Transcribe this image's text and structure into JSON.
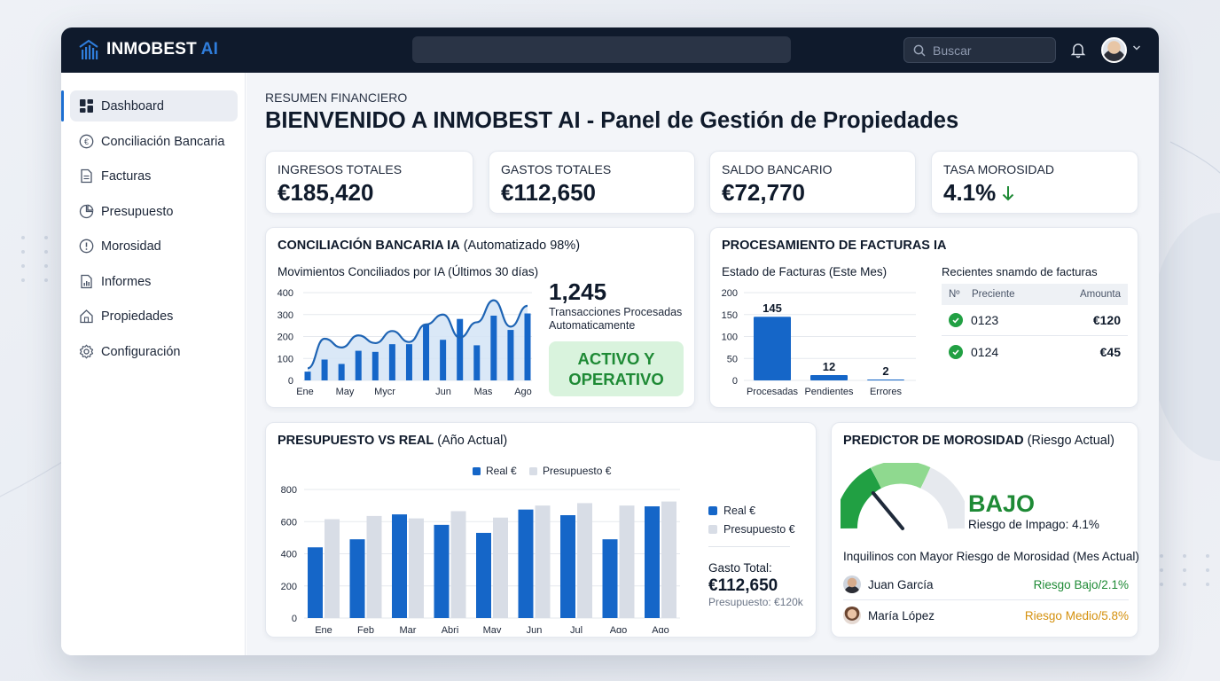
{
  "app": {
    "brand": "INMOBEST",
    "brand_accent": "AI",
    "search_placeholder": "Buscar"
  },
  "sidebar": {
    "items": [
      {
        "label": "Dashboard",
        "icon": "grid-icon",
        "active": true
      },
      {
        "label": "Conciliación Bancaria",
        "icon": "euro-icon"
      },
      {
        "label": "Facturas",
        "icon": "document-icon"
      },
      {
        "label": "Presupuesto",
        "icon": "pie-chart-icon"
      },
      {
        "label": "Morosidad",
        "icon": "alert-circle-icon"
      },
      {
        "label": "Informes",
        "icon": "report-icon"
      },
      {
        "label": "Propiedades",
        "icon": "home-icon"
      },
      {
        "label": "Configuración",
        "icon": "gear-icon"
      }
    ]
  },
  "header": {
    "eyebrow": "RESUMEN FINANCIERO",
    "title": "BIENVENIDO A INMOBEST AI - Panel de Gestión de Propiedades"
  },
  "kpis": [
    {
      "label": "INGRESOS TOTALES",
      "value": "€185,420"
    },
    {
      "label": "GASTOS TOTALES",
      "value": "€112,650"
    },
    {
      "label": "SALDO BANCARIO",
      "value": "€72,770"
    },
    {
      "label": "TASA MOROSIDAD",
      "value": "4.1%",
      "trend": "down"
    }
  ],
  "conciliacion": {
    "title": "CONCILIACIÓN BANCARIA IA",
    "title_suffix": "(Automatizado 98%)",
    "subtitle": "Movimientos Conciliados por IA (Últimos 30 días)",
    "count": "1,245",
    "count_desc": "Transacciones Procesadas Automaticamente",
    "status": "ACTIVO Y OPERATIVO"
  },
  "facturas": {
    "title": "PROCESAMIENTO DE FACTURAS IA",
    "subtitle": "Estado de Facturas (Este Mes)",
    "recent_title": "Recientes snamdo de facturas",
    "recent_headers": [
      "Nº",
      "Preciente",
      "Amounta"
    ],
    "recent_rows": [
      {
        "id": "0123",
        "amount": "€120"
      },
      {
        "id": "0124",
        "amount": "€45"
      }
    ]
  },
  "presupuesto": {
    "title": "PRESUPUESTO VS REAL",
    "title_suffix": "(Año Actual)",
    "legend_real": "Real €",
    "legend_presupuesto": "Presupuesto €",
    "gasto_label": "Gasto Total:",
    "gasto_value": "€112,650",
    "presupuesto_label": "Presupuesto: €120k"
  },
  "morosidad": {
    "title": "PREDICTOR DE MOROSIDAD",
    "title_suffix": "(Riesgo Actual)",
    "level": "BAJO",
    "gauge_fraction": 0.28,
    "risk_text": "Riesgo de Impago: 4.1%",
    "tenants_title": "Inquilinos con Mayor Riesgo de Morosidad (Mes Actual)",
    "tenants": [
      {
        "name": "Juan García",
        "risk": "Riesgo Bajo/2.1%",
        "color": "#1e8a35"
      },
      {
        "name": "María López",
        "risk": "Riesgo Medio/5.8%",
        "color": "#d4900d"
      }
    ]
  },
  "colors": {
    "accent": "#1d6fd1",
    "topbar": "#0f1a2c",
    "success": "#1e8a35",
    "warning": "#d4900d"
  },
  "chart_data": [
    {
      "type": "area",
      "title": "Movimientos Conciliados por IA (Últimos 30 días)",
      "x_ticks": [
        "Ene",
        "May",
        "Mycr",
        "Jun",
        "Mas",
        "Ago"
      ],
      "yticks": [
        0,
        100,
        200,
        300,
        400
      ],
      "ylim": [
        0,
        400
      ],
      "series": [
        {
          "kind": "line",
          "values": [
            55,
            190,
            150,
            205,
            170,
            225,
            175,
            255,
            300,
            195,
            265,
            365,
            245,
            340
          ]
        },
        {
          "kind": "bar",
          "values": [
            40,
            95,
            75,
            135,
            130,
            165,
            165,
            255,
            185,
            280,
            160,
            295,
            230,
            305
          ]
        }
      ]
    },
    {
      "type": "bar",
      "title": "Estado de Facturas (Este Mes)",
      "categories": [
        "Procesadas",
        "Pendientes",
        "Errores"
      ],
      "values": [
        145,
        12,
        2
      ],
      "yticks": [
        0,
        50,
        100,
        150,
        200
      ],
      "ylim": [
        0,
        200
      ]
    },
    {
      "type": "bar",
      "title": "PRESUPUESTO VS REAL",
      "categories": [
        "Ene",
        "Feb",
        "Mar",
        "Abri",
        "May",
        "Jun",
        "Jul",
        "Ago",
        "Ago"
      ],
      "yticks": [
        0,
        200,
        400,
        600,
        800
      ],
      "ylim": [
        0,
        800
      ],
      "legend": "top",
      "series": [
        {
          "name": "Real €",
          "values": [
            440,
            490,
            645,
            580,
            530,
            675,
            640,
            490,
            695
          ]
        },
        {
          "name": "Presupuesto €",
          "values": [
            615,
            635,
            620,
            665,
            625,
            700,
            715,
            700,
            725
          ]
        }
      ]
    }
  ]
}
